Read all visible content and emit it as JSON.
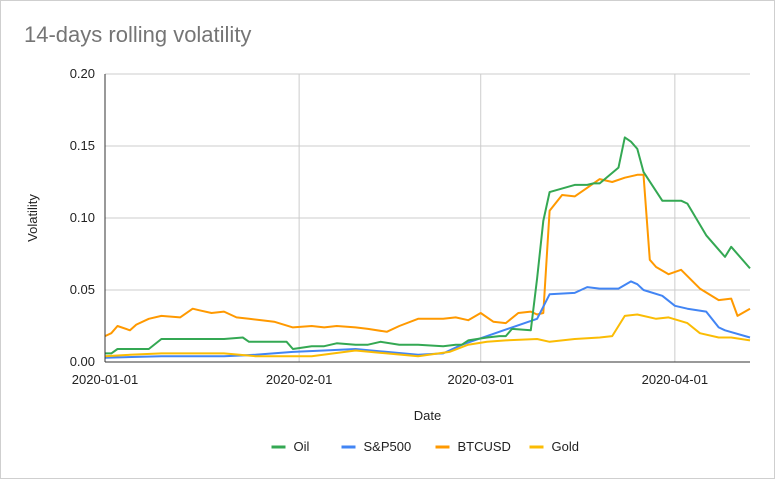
{
  "chart_data": {
    "type": "line",
    "title": "14-days rolling volatility",
    "xlabel": "Date",
    "ylabel": "Volatility",
    "ylim": [
      0,
      0.2
    ],
    "y_ticks": [
      "0.00",
      "0.05",
      "0.10",
      "0.15",
      "0.20"
    ],
    "x_range": [
      "2020-01-01",
      "2020-04-13"
    ],
    "x_ticks": [
      "2020-01-01",
      "2020-02-01",
      "2020-03-01",
      "2020-04-01"
    ],
    "grid": true,
    "legend_position": "bottom",
    "series": [
      {
        "name": "Oil",
        "color": "#34a853",
        "x": [
          "2020-01-01",
          "2020-01-02",
          "2020-01-03",
          "2020-01-06",
          "2020-01-07",
          "2020-01-08",
          "2020-01-10",
          "2020-01-13",
          "2020-01-15",
          "2020-01-20",
          "2020-01-23",
          "2020-01-24",
          "2020-01-27",
          "2020-01-30",
          "2020-01-31",
          "2020-02-03",
          "2020-02-05",
          "2020-02-07",
          "2020-02-10",
          "2020-02-12",
          "2020-02-14",
          "2020-02-17",
          "2020-02-20",
          "2020-02-24",
          "2020-02-26",
          "2020-02-27",
          "2020-02-28",
          "2020-03-02",
          "2020-03-04",
          "2020-03-05",
          "2020-03-06",
          "2020-03-09",
          "2020-03-10",
          "2020-03-11",
          "2020-03-12",
          "2020-03-16",
          "2020-03-18",
          "2020-03-19",
          "2020-03-20",
          "2020-03-23",
          "2020-03-24",
          "2020-03-25",
          "2020-03-26",
          "2020-03-27",
          "2020-03-30",
          "2020-03-31",
          "2020-04-02",
          "2020-04-03",
          "2020-04-06",
          "2020-04-08",
          "2020-04-09",
          "2020-04-10",
          "2020-04-13"
        ],
        "y": [
          0.006,
          0.006,
          0.009,
          0.009,
          0.009,
          0.009,
          0.016,
          0.016,
          0.016,
          0.016,
          0.017,
          0.014,
          0.014,
          0.014,
          0.009,
          0.011,
          0.011,
          0.013,
          0.012,
          0.012,
          0.014,
          0.012,
          0.012,
          0.011,
          0.012,
          0.012,
          0.015,
          0.017,
          0.018,
          0.018,
          0.023,
          0.022,
          0.058,
          0.098,
          0.118,
          0.123,
          0.123,
          0.124,
          0.124,
          0.135,
          0.156,
          0.153,
          0.148,
          0.132,
          0.112,
          0.112,
          0.112,
          0.11,
          0.088,
          0.078,
          0.073,
          0.08,
          0.065
        ]
      },
      {
        "name": "S&P500",
        "color": "#4285f4",
        "x": [
          "2020-01-01",
          "2020-01-10",
          "2020-01-20",
          "2020-01-25",
          "2020-01-31",
          "2020-02-05",
          "2020-02-10",
          "2020-02-15",
          "2020-02-20",
          "2020-02-24",
          "2020-02-27",
          "2020-03-02",
          "2020-03-06",
          "2020-03-10",
          "2020-03-12",
          "2020-03-16",
          "2020-03-18",
          "2020-03-20",
          "2020-03-23",
          "2020-03-25",
          "2020-03-26",
          "2020-03-27",
          "2020-03-30",
          "2020-04-01",
          "2020-04-03",
          "2020-04-06",
          "2020-04-08",
          "2020-04-09",
          "2020-04-13"
        ],
        "y": [
          0.003,
          0.004,
          0.004,
          0.005,
          0.007,
          0.008,
          0.009,
          0.007,
          0.005,
          0.006,
          0.012,
          0.018,
          0.024,
          0.03,
          0.047,
          0.048,
          0.052,
          0.051,
          0.051,
          0.056,
          0.054,
          0.05,
          0.046,
          0.039,
          0.037,
          0.035,
          0.024,
          0.022,
          0.017
        ]
      },
      {
        "name": "BTCUSD",
        "color": "#ff9900",
        "x": [
          "2020-01-01",
          "2020-01-02",
          "2020-01-03",
          "2020-01-05",
          "2020-01-06",
          "2020-01-08",
          "2020-01-10",
          "2020-01-13",
          "2020-01-15",
          "2020-01-16",
          "2020-01-18",
          "2020-01-20",
          "2020-01-22",
          "2020-01-24",
          "2020-01-26",
          "2020-01-28",
          "2020-01-31",
          "2020-02-03",
          "2020-02-05",
          "2020-02-07",
          "2020-02-10",
          "2020-02-12",
          "2020-02-15",
          "2020-02-17",
          "2020-02-20",
          "2020-02-24",
          "2020-02-26",
          "2020-02-28",
          "2020-03-01",
          "2020-03-03",
          "2020-03-05",
          "2020-03-07",
          "2020-03-09",
          "2020-03-10",
          "2020-03-11",
          "2020-03-12",
          "2020-03-14",
          "2020-03-16",
          "2020-03-18",
          "2020-03-20",
          "2020-03-22",
          "2020-03-24",
          "2020-03-26",
          "2020-03-27",
          "2020-03-28",
          "2020-03-29",
          "2020-03-31",
          "2020-04-02",
          "2020-04-05",
          "2020-04-08",
          "2020-04-10",
          "2020-04-11",
          "2020-04-13"
        ],
        "y": [
          0.018,
          0.02,
          0.025,
          0.022,
          0.026,
          0.03,
          0.032,
          0.031,
          0.037,
          0.036,
          0.034,
          0.035,
          0.031,
          0.03,
          0.029,
          0.028,
          0.024,
          0.025,
          0.024,
          0.025,
          0.024,
          0.023,
          0.021,
          0.025,
          0.03,
          0.03,
          0.031,
          0.029,
          0.034,
          0.028,
          0.027,
          0.034,
          0.035,
          0.033,
          0.034,
          0.105,
          0.116,
          0.115,
          0.121,
          0.127,
          0.125,
          0.128,
          0.13,
          0.13,
          0.071,
          0.066,
          0.061,
          0.064,
          0.051,
          0.043,
          0.044,
          0.032,
          0.037
        ]
      },
      {
        "name": "Gold",
        "color": "#fbbc04",
        "x": [
          "2020-01-01",
          "2020-01-05",
          "2020-01-10",
          "2020-01-20",
          "2020-01-25",
          "2020-01-31",
          "2020-02-03",
          "2020-02-10",
          "2020-02-15",
          "2020-02-20",
          "2020-02-25",
          "2020-02-28",
          "2020-03-02",
          "2020-03-05",
          "2020-03-10",
          "2020-03-12",
          "2020-03-16",
          "2020-03-20",
          "2020-03-22",
          "2020-03-24",
          "2020-03-26",
          "2020-03-29",
          "2020-03-31",
          "2020-04-03",
          "2020-04-05",
          "2020-04-08",
          "2020-04-10",
          "2020-04-13"
        ],
        "y": [
          0.004,
          0.005,
          0.006,
          0.006,
          0.004,
          0.004,
          0.004,
          0.008,
          0.006,
          0.004,
          0.007,
          0.012,
          0.014,
          0.015,
          0.016,
          0.014,
          0.016,
          0.017,
          0.018,
          0.032,
          0.033,
          0.03,
          0.031,
          0.027,
          0.02,
          0.017,
          0.017,
          0.015
        ]
      }
    ]
  }
}
